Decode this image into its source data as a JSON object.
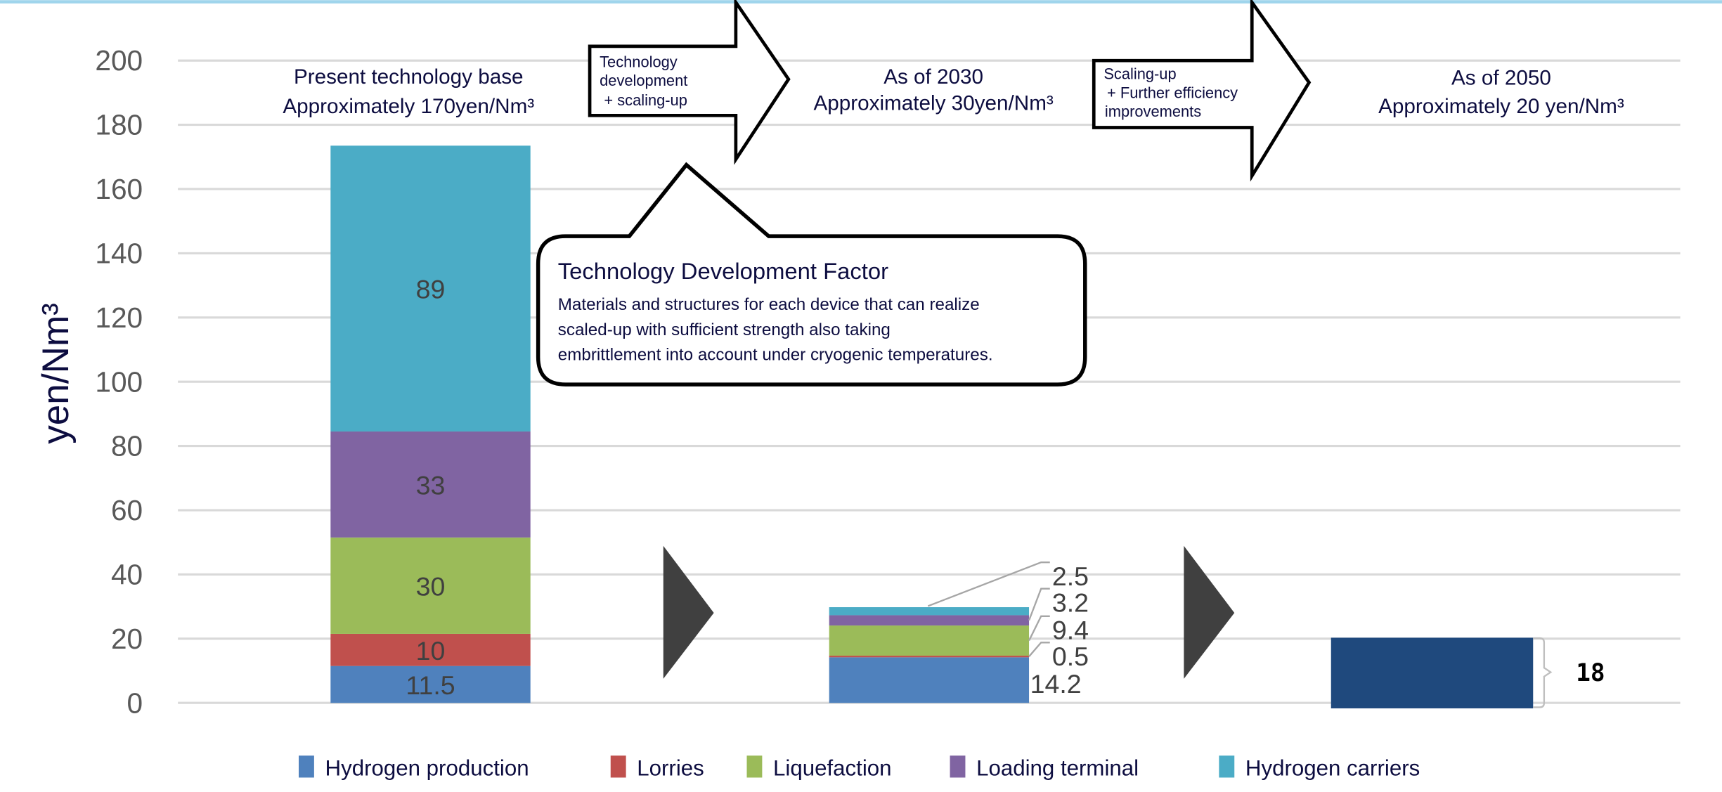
{
  "chart_data": {
    "type": "bar",
    "stacked": true,
    "ylabel": "yen/Nm³",
    "ylim": [
      0,
      200
    ],
    "yticks": [
      "0",
      "20",
      "40",
      "60",
      "80",
      "100",
      "120",
      "140",
      "160",
      "180",
      "200"
    ],
    "grid": true,
    "legend_position": "bottom",
    "categories": [
      "Present technology base",
      "As of 2030",
      "As of 2050"
    ],
    "category_headers": [
      {
        "line1": "Present technology base",
        "line2": "Approximately 170yen/Nm³"
      },
      {
        "line1": "As of 2030",
        "line2": "Approximately 30yen/Nm³"
      },
      {
        "line1": "As of 2050",
        "line2": "Approximately 20 yen/Nm³"
      }
    ],
    "series": [
      {
        "name": "Hydrogen production",
        "color": "#4f81bd",
        "values": [
          11.5,
          14.2,
          null
        ],
        "labels": [
          "11.5",
          "14.2",
          ""
        ]
      },
      {
        "name": "Lorries",
        "color": "#c0504d",
        "values": [
          10,
          0.5,
          null
        ],
        "labels": [
          "10",
          "0.5",
          ""
        ]
      },
      {
        "name": "Liquefaction",
        "color": "#9bbb59",
        "values": [
          30,
          9.4,
          null
        ],
        "labels": [
          "30",
          "9.4",
          ""
        ]
      },
      {
        "name": "Loading terminal",
        "color": "#8064a2",
        "values": [
          33,
          3.2,
          null
        ],
        "labels": [
          "33",
          "3.2",
          ""
        ]
      },
      {
        "name": "Hydrogen carriers",
        "color": "#4bacc6",
        "values": [
          89,
          2.5,
          null
        ],
        "labels": [
          "89",
          "2.5",
          ""
        ]
      }
    ],
    "total_2050": {
      "value": 18,
      "label": "18",
      "color": "#1f497d"
    },
    "arrows": [
      {
        "lines": [
          "Technology",
          "development",
          "+ scaling-up"
        ]
      },
      {
        "lines": [
          "Scaling-up",
          "+ Further efficiency",
          "improvements"
        ]
      }
    ],
    "callout": {
      "title": "Technology Development Factor",
      "lines": [
        "Materials and structures for each device that can realize",
        "scaled-up with sufficient strength also taking",
        "embrittlement into account under cryogenic temperatures."
      ]
    }
  }
}
